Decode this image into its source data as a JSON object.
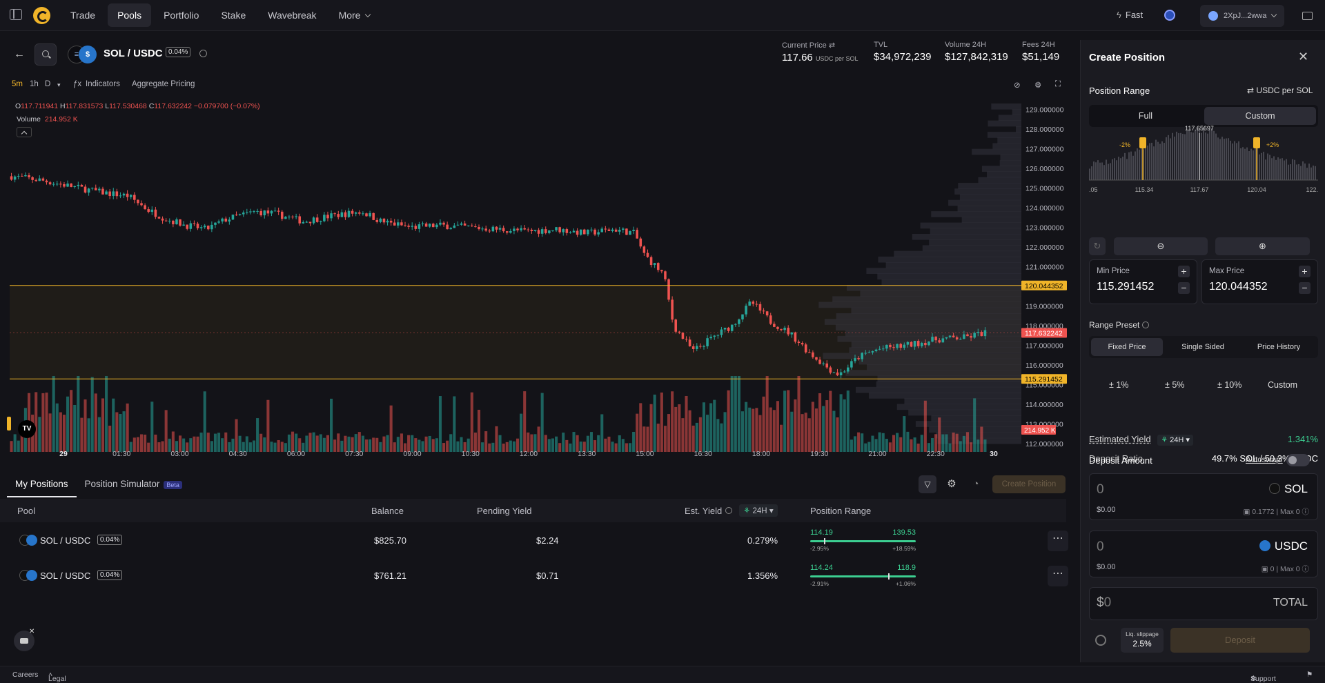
{
  "nav": {
    "links": [
      {
        "label": "Trade",
        "active": false
      },
      {
        "label": "Pools",
        "active": true
      },
      {
        "label": "Portfolio",
        "active": false
      },
      {
        "label": "Stake",
        "active": false
      },
      {
        "label": "Wavebreak",
        "active": false
      },
      {
        "label": "More",
        "active": false
      }
    ],
    "fast_label": "Fast",
    "wallet_address": "2XpJ...2wwa"
  },
  "header": {
    "pair": "SOL / USDC",
    "fee_tier": "0.04%",
    "stats": {
      "current_price_label": "Current Price",
      "current_price": "117.66",
      "current_price_unit": "USDC per SOL",
      "tvl_label": "TVL",
      "tvl": "$34,972,239",
      "volume_label": "Volume 24H",
      "volume": "$127,842,319",
      "fees_label": "Fees 24H",
      "fees": "$51,149"
    }
  },
  "chart_toolbar": {
    "intervals": [
      "5m",
      "1h",
      "D"
    ],
    "active_interval": "5m",
    "indicators_label": "Indicators",
    "aggregate_label": "Aggregate Pricing"
  },
  "ohlc": {
    "o_label": "O",
    "o": "117.711941",
    "h_label": "H",
    "h": "117.831573",
    "l_label": "L",
    "l": "117.530468",
    "c_label": "C",
    "c": "117.632242",
    "change": "−0.079700 (−0.07%)",
    "volume_label": "Volume",
    "volume": "214.952 K"
  },
  "chart_data": {
    "type": "candlestick",
    "pair": "SOL / USDC",
    "interval": "5m",
    "x_tick_labels": [
      "29",
      "01:30",
      "03:00",
      "04:30",
      "06:00",
      "07:30",
      "09:00",
      "10:30",
      "12:00",
      "13:30",
      "15:00",
      "16:30",
      "18:00",
      "19:30",
      "21:00",
      "22:30",
      "30"
    ],
    "y_tick_labels": [
      "129.000000",
      "128.000000",
      "127.000000",
      "126.000000",
      "125.000000",
      "124.000000",
      "123.000000",
      "122.000000",
      "121.000000",
      "120.000000",
      "119.000000",
      "118.000000",
      "117.000000",
      "116.000000",
      "115.000000",
      "114.000000",
      "113.000000",
      "112.000000"
    ],
    "ylim": [
      112,
      129.3
    ],
    "range_max_label": "120.044352",
    "range_min_label": "115.291452",
    "last_price_label": "117.632242",
    "volume_label": "214.952 K",
    "range_max": 120.044352,
    "range_min": 115.291452,
    "last_price": 117.632242,
    "price_path": [
      [
        0,
        125.6
      ],
      [
        0.03,
        125.4
      ],
      [
        0.06,
        125.1
      ],
      [
        0.09,
        124.8
      ],
      [
        0.12,
        124.6
      ],
      [
        0.14,
        123.9
      ],
      [
        0.16,
        123.4
      ],
      [
        0.18,
        123.1
      ],
      [
        0.2,
        122.9
      ],
      [
        0.22,
        123.4
      ],
      [
        0.25,
        123.8
      ],
      [
        0.27,
        123.7
      ],
      [
        0.3,
        123.3
      ],
      [
        0.33,
        123.6
      ],
      [
        0.36,
        123.8
      ],
      [
        0.38,
        123.3
      ],
      [
        0.41,
        123.0
      ],
      [
        0.44,
        123.1
      ],
      [
        0.47,
        123.0
      ],
      [
        0.5,
        122.9
      ],
      [
        0.53,
        122.8
      ],
      [
        0.56,
        122.9
      ],
      [
        0.59,
        122.7
      ],
      [
        0.62,
        122.9
      ],
      [
        0.64,
        122.7
      ],
      [
        0.65,
        121.6
      ],
      [
        0.67,
        120.6
      ],
      [
        0.68,
        118.0
      ],
      [
        0.7,
        116.7
      ],
      [
        0.72,
        117.4
      ],
      [
        0.74,
        118.0
      ],
      [
        0.76,
        119.2
      ],
      [
        0.78,
        118.2
      ],
      [
        0.8,
        117.6
      ],
      [
        0.82,
        116.6
      ],
      [
        0.84,
        115.8
      ],
      [
        0.85,
        115.5
      ],
      [
        0.87,
        116.4
      ],
      [
        0.89,
        116.8
      ],
      [
        0.92,
        117.0
      ],
      [
        0.95,
        117.3
      ],
      [
        0.98,
        117.4
      ],
      [
        1.0,
        117.65
      ]
    ],
    "volume_profile": "liquidity histogram on right edge"
  },
  "bottom": {
    "tabs": [
      {
        "label": "My Positions",
        "active": true
      },
      {
        "label": "Position Simulator",
        "active": false,
        "badge": "Beta"
      }
    ],
    "create_position_label": "Create Position",
    "columns": {
      "pool": "Pool",
      "balance": "Balance",
      "pending": "Pending Yield",
      "yield": "Est. Yield",
      "yield_period": "24H",
      "range": "Position Range"
    },
    "rows": [
      {
        "pool": "SOL / USDC",
        "fee": "0.04%",
        "balance": "$825.70",
        "pending": "$2.24",
        "yield": "0.279%",
        "min": "114.19",
        "max": "139.53",
        "min_pct": "-2.95%",
        "max_pct": "+18.59%",
        "current_fraction": 0.13
      },
      {
        "pool": "SOL / USDC",
        "fee": "0.04%",
        "balance": "$761.21",
        "pending": "$0.71",
        "yield": "1.356%",
        "min": "114.24",
        "max": "118.9",
        "min_pct": "-2.91%",
        "max_pct": "+1.06%",
        "current_fraction": 0.74
      }
    ]
  },
  "panel": {
    "title": "Create Position",
    "range_title": "Position Range",
    "unit_toggle": "USDC per SOL",
    "modes": [
      "Full",
      "Custom"
    ],
    "active_mode": "Custom",
    "hist": {
      "current": "117.65697",
      "left_pct": "-2%",
      "right_pct": "+2%",
      "ticks": [
        ".05",
        "115.34",
        "117.67",
        "120.04",
        "122."
      ]
    },
    "min_label": "Min Price",
    "min_value": "115.291452",
    "max_label": "Max Price",
    "max_value": "120.044352",
    "preset_title": "Range Preset",
    "preset_modes": [
      "Fixed Price",
      "Single Sided",
      "Price History"
    ],
    "active_preset_mode": "Fixed Price",
    "presets": [
      "± 1%",
      "± 5%",
      "± 10%",
      "Custom"
    ],
    "est_yield_label": "Estimated Yield",
    "est_yield_period": "24H",
    "est_yield_value": "1.341%",
    "deposit_ratio_label": "Deposit Ratio",
    "deposit_ratio_value": "49.7% SOL / 50.3% USDC",
    "deposit_title": "Deposit Amount",
    "autoswap_label": "Autoswap:",
    "sol": {
      "amount": "0",
      "symbol": "SOL",
      "usd": "$0.00",
      "balance": "0.1772",
      "max": "Max 0"
    },
    "usdc": {
      "amount": "0",
      "symbol": "USDC",
      "usd": "$0.00",
      "balance": "0",
      "max": "Max 0"
    },
    "total_prefix": "$",
    "total_amount": "0",
    "total_label": "TOTAL",
    "slippage_label": "Liq. slippage",
    "slippage_value": "2.5%",
    "deposit_label": "Deposit"
  },
  "footer": {
    "careers": "Careers",
    "legal": "Legal",
    "support": "Support"
  },
  "colors": {
    "up": "#26a69a",
    "down": "#ef5350",
    "accent": "#f0b429",
    "range_line": "#f0b429",
    "yield_green": "#3ccf91"
  }
}
